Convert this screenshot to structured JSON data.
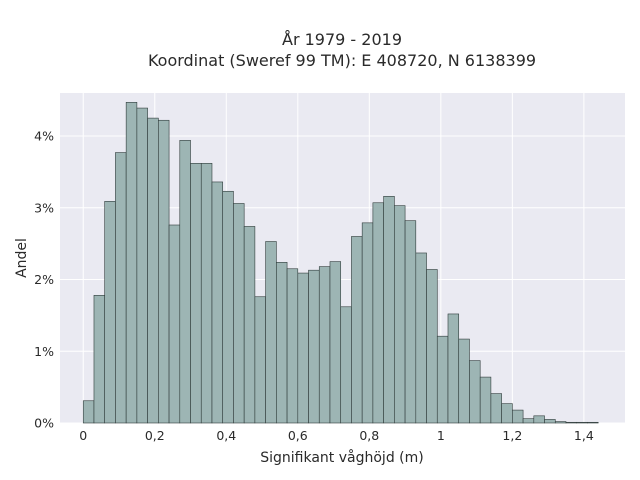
{
  "chart_data": {
    "type": "bar",
    "title_line1": "År 1979 - 2019",
    "title_line2": "Koordinat (Sweref 99 TM): E 408720, N 6138399",
    "xlabel": "Signifikant våghöjd (m)",
    "ylabel": "Andel",
    "xlim": [
      -0.065,
      1.515
    ],
    "ylim": [
      0,
      4.6
    ],
    "x_ticks": [
      {
        "value": 0,
        "label": "0"
      },
      {
        "value": 0.2,
        "label": "0,2"
      },
      {
        "value": 0.4,
        "label": "0,4"
      },
      {
        "value": 0.6,
        "label": "0,6"
      },
      {
        "value": 0.8,
        "label": "0,8"
      },
      {
        "value": 1.0,
        "label": "1"
      },
      {
        "value": 1.2,
        "label": "1,2"
      },
      {
        "value": 1.4,
        "label": "1,4"
      }
    ],
    "y_ticks": [
      {
        "value": 0,
        "label": "0%"
      },
      {
        "value": 1,
        "label": "1%"
      },
      {
        "value": 2,
        "label": "2%"
      },
      {
        "value": 3,
        "label": "3%"
      },
      {
        "value": 4,
        "label": "4%"
      }
    ],
    "bin_width": 0.03,
    "bin_starts": [
      0.0,
      0.03,
      0.06,
      0.09,
      0.12,
      0.15,
      0.18,
      0.21,
      0.24,
      0.27,
      0.3,
      0.33,
      0.36,
      0.39,
      0.42,
      0.45,
      0.48,
      0.51,
      0.54,
      0.57,
      0.6,
      0.63,
      0.66,
      0.69,
      0.72,
      0.75,
      0.78,
      0.81,
      0.84,
      0.87,
      0.9,
      0.93,
      0.96,
      0.99,
      1.02,
      1.05,
      1.08,
      1.11,
      1.14,
      1.17,
      1.2,
      1.23,
      1.26,
      1.29,
      1.32,
      1.35,
      1.38,
      1.41
    ],
    "values": [
      0.31,
      1.78,
      3.09,
      3.77,
      4.47,
      4.39,
      4.25,
      4.22,
      2.76,
      3.94,
      3.62,
      3.62,
      3.36,
      3.23,
      3.06,
      2.74,
      1.76,
      2.53,
      2.24,
      2.15,
      2.09,
      2.13,
      2.18,
      2.25,
      1.62,
      2.6,
      2.79,
      3.07,
      3.16,
      3.03,
      2.82,
      2.37,
      2.14,
      1.21,
      1.52,
      1.17,
      0.87,
      0.64,
      0.41,
      0.27,
      0.18,
      0.06,
      0.1,
      0.05,
      0.02,
      0.01,
      0.01,
      0.01
    ],
    "colors": {
      "plot_background": "#eaeaf2",
      "grid": "#ffffff",
      "bar_fill": "#9db5b4",
      "bar_stroke": "#2f3b3a",
      "text": "#2a2a2a"
    },
    "grid": true
  }
}
